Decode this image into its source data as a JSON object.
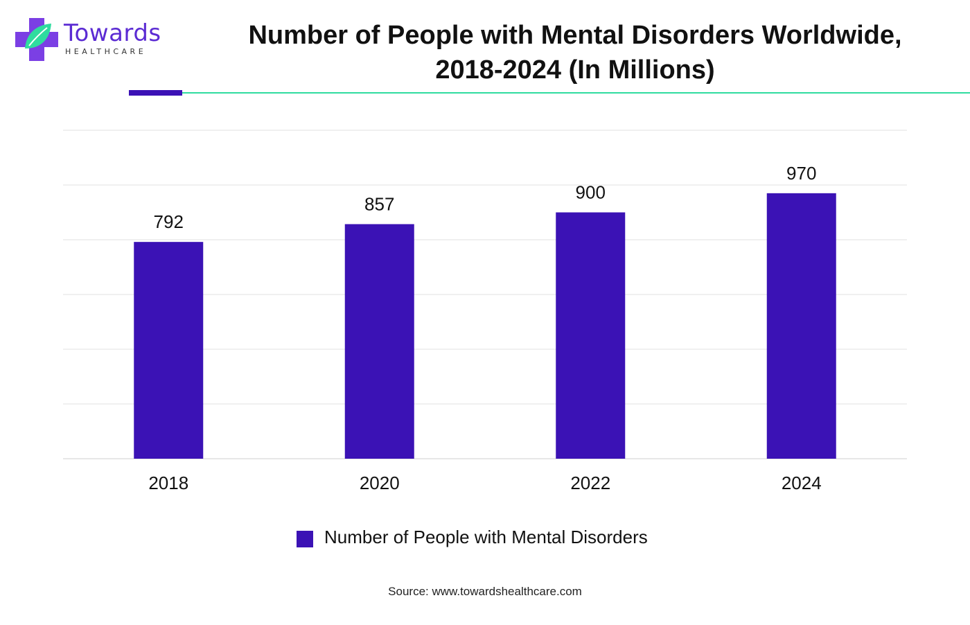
{
  "brand": {
    "name": "Towards",
    "tagline": "HEALTHCARE",
    "icon": "medical-cross-leaf-icon",
    "colors": {
      "purple": "#5b2bd3",
      "green": "#2fdc9f"
    }
  },
  "chart_data": {
    "type": "bar",
    "title_lines": [
      "Number of People with Mental Disorders Worldwide,",
      "2018-2024 (In Millions)"
    ],
    "categories": [
      "2018",
      "2020",
      "2022",
      "2024"
    ],
    "series": [
      {
        "name": "Number of People with Mental Disorders",
        "values": [
          792,
          857,
          900,
          970
        ],
        "color": "#3b12b5"
      }
    ],
    "ylim": [
      0,
      1200
    ],
    "gridlines": true,
    "y_axis_labels_visible": false,
    "data_labels": true,
    "legend_position": "bottom"
  },
  "source": "Source: www.towardshealthcare.com"
}
